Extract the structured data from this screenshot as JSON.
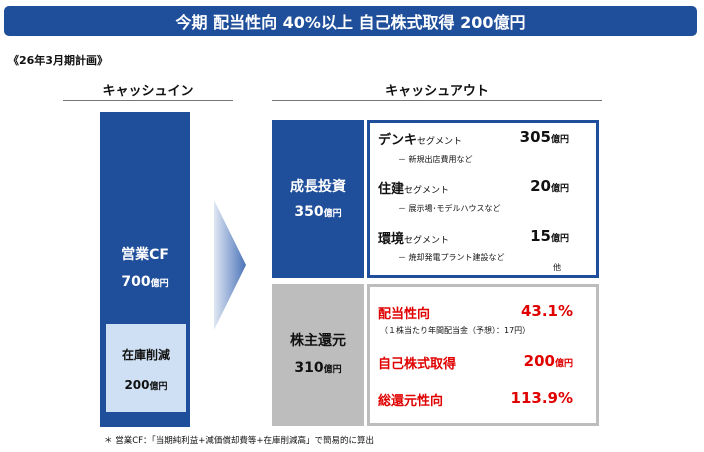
{
  "banner": {
    "title": "今期 配当性向 40%以上 自己株式取得 200億円"
  },
  "plan_label": "《26年3月期計画》",
  "cash_in": {
    "heading": "キャッシュイン",
    "operating_cf": {
      "label": "営業CF",
      "value": "700",
      "unit": "億円"
    },
    "inventory_reduction": {
      "label": "在庫削減",
      "value": "200",
      "unit": "億円"
    }
  },
  "cash_out": {
    "heading": "キャッシュアウト",
    "growth_investment": {
      "label": "成長投資",
      "value": "350",
      "unit": "億円",
      "segments": [
        {
          "name": "デンキ",
          "suffix": "セグメント",
          "value": "305",
          "unit": "億円",
          "note": "－ 新規出店費用など"
        },
        {
          "name": "住建",
          "suffix": "セグメント",
          "value": "20",
          "unit": "億円",
          "note": "－ 展示場･モデルハウスなど"
        },
        {
          "name": "環境",
          "suffix": "セグメント",
          "value": "15",
          "unit": "億円",
          "note": "－ 焼却発電プラント建設など"
        }
      ],
      "etc": "他"
    },
    "shareholder_return": {
      "label": "株主還元",
      "value": "310",
      "unit": "億円",
      "payout_ratio": {
        "label": "配当性向",
        "value": "43.1%"
      },
      "dividend_note": "（１株当たり年間配当金（予想）：17円）",
      "buyback": {
        "label": "自己株式取得",
        "value": "200",
        "unit": "億円"
      },
      "total_return_ratio": {
        "label": "総還元性向",
        "value": "113.9%"
      }
    }
  },
  "footnote": "＊ 営業CF：「当期純利益+減価償却費等+在庫削減高」で簡易的に算出",
  "colors": {
    "navy": "#1f4e9a",
    "light_blue": "#cfe0f4",
    "gray": "#bdbdbd",
    "red": "#e00000"
  }
}
